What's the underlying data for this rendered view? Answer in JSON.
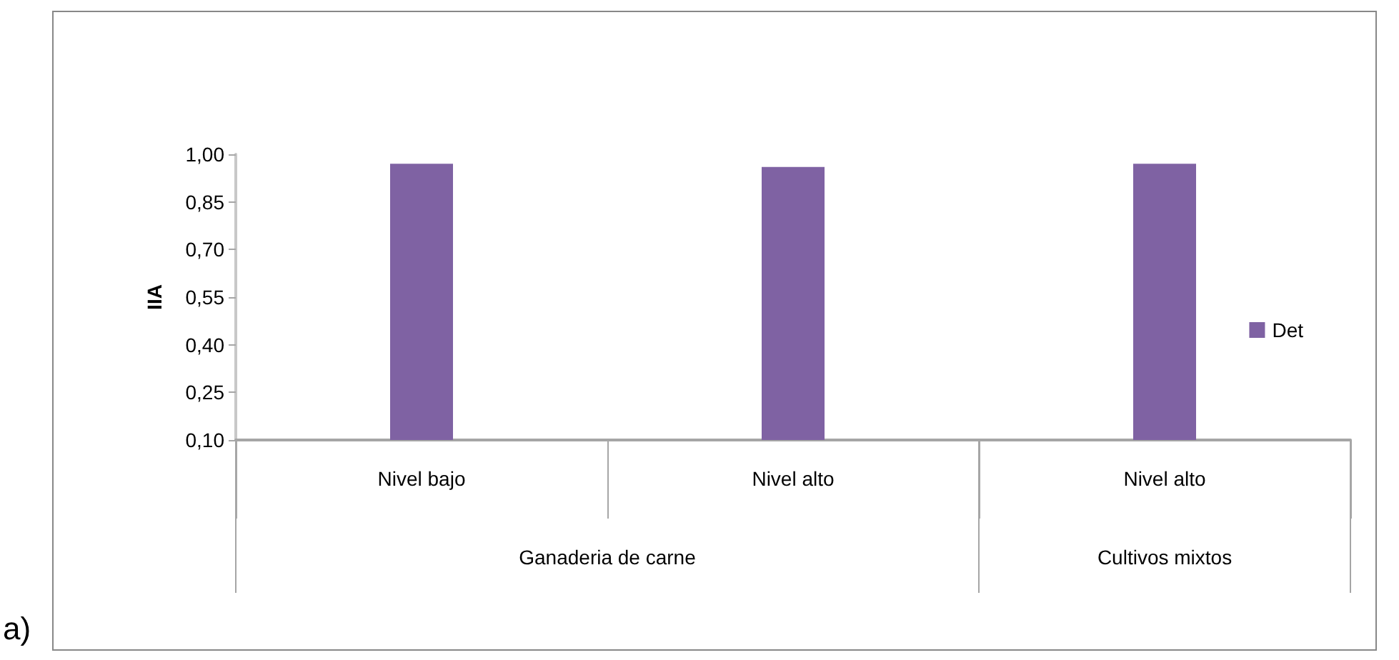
{
  "chart_data": {
    "type": "bar",
    "ylabel": "IIA",
    "categories": [
      "Nivel bajo",
      "Nivel alto",
      "Nivel alto"
    ],
    "series": [
      {
        "name": "Det",
        "color": "#7f62a3",
        "values": [
          0.97,
          0.96,
          0.97
        ]
      }
    ],
    "ylim": [
      0.1,
      1.0
    ],
    "yticks": [
      {
        "value": 0.1,
        "label": "0,10"
      },
      {
        "value": 0.25,
        "label": "0,25"
      },
      {
        "value": 0.4,
        "label": "0,40"
      },
      {
        "value": 0.55,
        "label": "0,55"
      },
      {
        "value": 0.7,
        "label": "0,70"
      },
      {
        "value": 0.85,
        "label": "0,85"
      },
      {
        "value": 1.0,
        "label": "1,00"
      }
    ],
    "grid": false,
    "legend": "right",
    "annotations": [
      "Ganaderia de carne",
      "Cultivos mixtos",
      "a)"
    ]
  }
}
